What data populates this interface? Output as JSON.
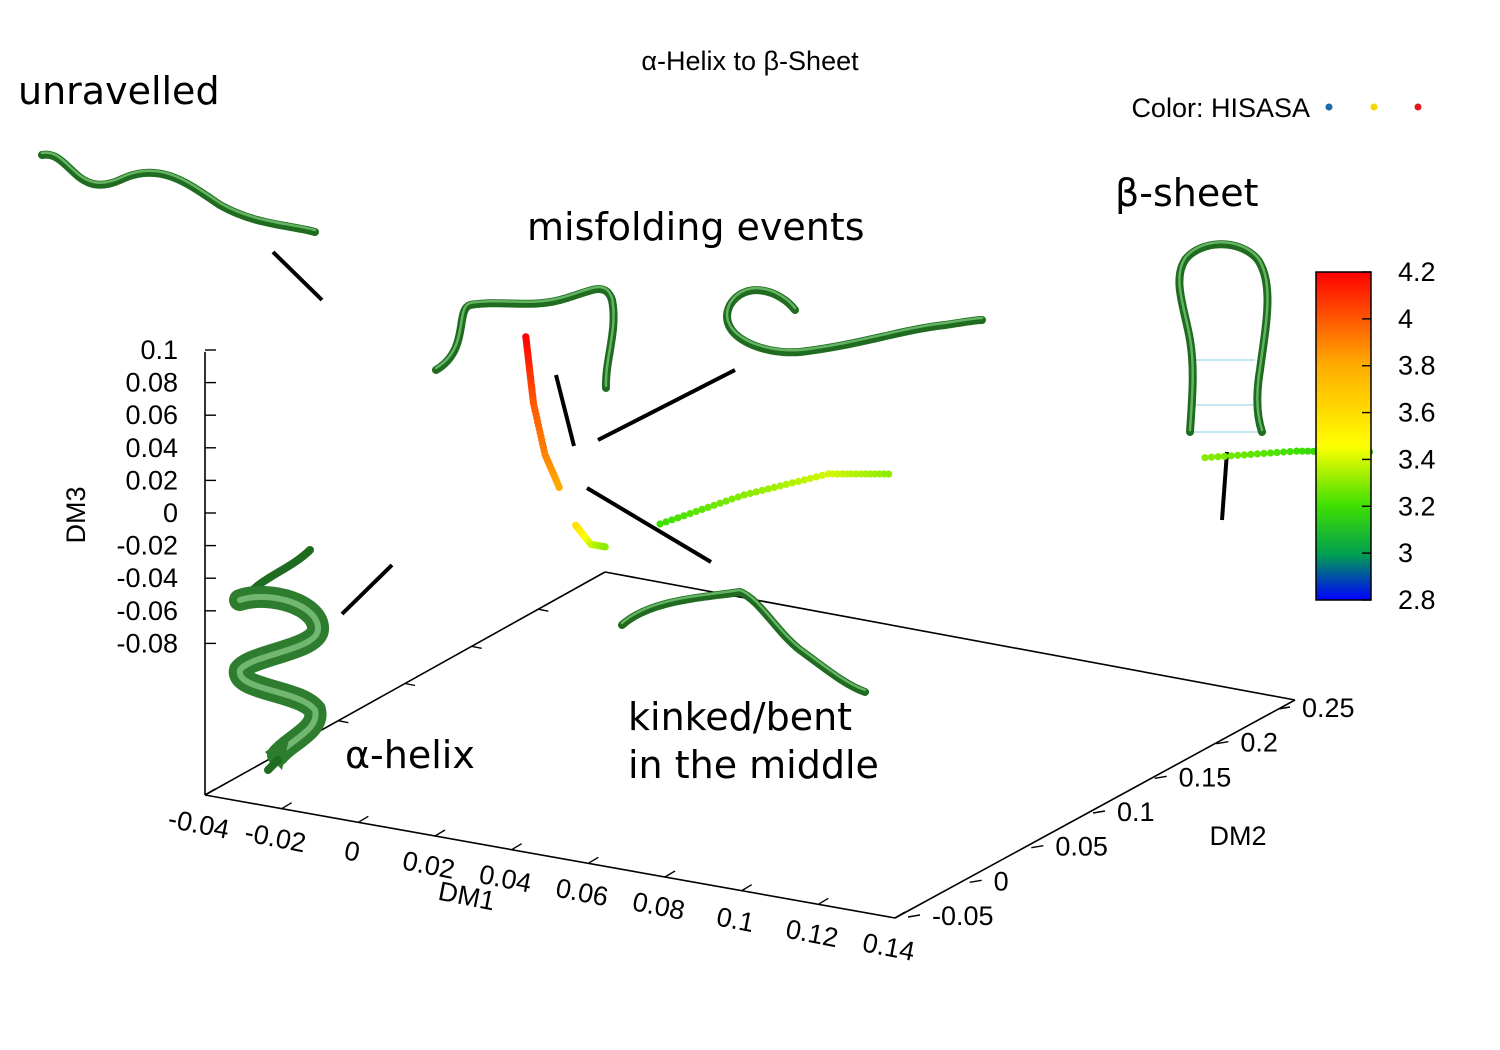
{
  "chart_data": {
    "type": "scatter",
    "dimensions": 3,
    "title": "α-Helix to β-Sheet",
    "xlabel": "DM1",
    "ylabel": "DM2",
    "zlabel": "DM3",
    "x_ticks": [
      "-0.04",
      "-0.02",
      "0",
      "0.02",
      "0.04",
      "0.06",
      "0.08",
      "0.1",
      "0.12",
      "0.14"
    ],
    "y_ticks": [
      "-0.05",
      "0",
      "0.05",
      "0.1",
      "0.15",
      "0.2",
      "0.25"
    ],
    "z_ticks": [
      "0.1",
      "0.08",
      "0.06",
      "0.04",
      "0.02",
      "0",
      "-0.02",
      "-0.04",
      "-0.06",
      "-0.08"
    ],
    "xlim": [
      -0.04,
      0.14
    ],
    "ylim": [
      -0.05,
      0.25
    ],
    "zlim": [
      -0.08,
      0.1
    ],
    "legend": {
      "label": "Color: HISASA",
      "placement": "top-right",
      "marker_colors": [
        "#1a6aa8",
        "#f2d700",
        "#e8141a"
      ]
    },
    "colorbar": {
      "label": "",
      "ticks": [
        "4.2",
        "4",
        "3.8",
        "3.6",
        "3.4",
        "3.2",
        "3",
        "2.8"
      ],
      "range": [
        2.8,
        4.2
      ],
      "colors": [
        "#0000ff",
        "#00a050",
        "#40e000",
        "#ffff00",
        "#ffaa00",
        "#ff0000"
      ]
    },
    "trajectory_segments": [
      {
        "phase": "unravelled",
        "dm1": [
          -0.005,
          -0.004,
          -0.003,
          0.0,
          0.004
        ],
        "dm2": [
          0.0,
          0.0,
          0.0,
          0.0,
          0.0
        ],
        "dm3": [
          0.1,
          0.08,
          0.06,
          0.03,
          0.01
        ],
        "hisasa": [
          4.2,
          4.1,
          4.0,
          3.9,
          3.8
        ]
      },
      {
        "phase": "α-helix",
        "dm1": [
          0.008,
          0.012,
          0.016
        ],
        "dm2": [
          0.0,
          0.0,
          0.0
        ],
        "dm3": [
          -0.01,
          -0.02,
          -0.02
        ],
        "hisasa": [
          3.6,
          3.4,
          3.3
        ]
      },
      {
        "phase": "misfolding",
        "dm1": [
          0.03,
          0.045,
          0.06,
          0.07
        ],
        "dm2": [
          0.0,
          0.02,
          0.04,
          0.06
        ],
        "dm3": [
          0.0,
          0.015,
          0.025,
          0.02
        ],
        "hisasa": [
          3.2,
          3.3,
          3.4,
          3.3
        ]
      },
      {
        "phase": "β-sheet",
        "dm1": [
          0.12,
          0.13,
          0.14
        ],
        "dm2": [
          0.15,
          0.19,
          0.22
        ],
        "dm3": [
          0.01,
          0.0,
          -0.01
        ],
        "hisasa": [
          3.3,
          3.2,
          3.1
        ]
      }
    ],
    "annotations": [
      "unravelled",
      "misfolding events",
      "β-sheet",
      "α-helix",
      "kinked/bent",
      "in the middle"
    ]
  }
}
